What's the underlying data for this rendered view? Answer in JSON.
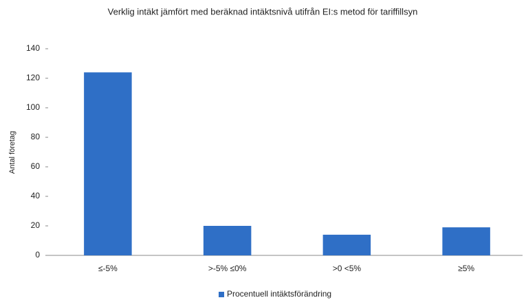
{
  "chart_data": {
    "type": "bar",
    "title": "Verklig intäkt jämfört med beräknad intäktsnivå utifrån EI:s metod för tariffillsyn",
    "ylabel": "Antal företag",
    "categories": [
      "≤-5%",
      ">-5% ≤0%",
      ">0 <5%",
      "≥5%"
    ],
    "series": [
      {
        "name": "Procentuell intäktsförändring",
        "color": "#2f6fc6",
        "values": [
          124,
          20,
          14,
          19
        ]
      }
    ],
    "ylim": [
      0,
      140
    ],
    "yticks": [
      0,
      20,
      40,
      60,
      80,
      100,
      120,
      140
    ],
    "grid": false,
    "legend": "bottom"
  }
}
